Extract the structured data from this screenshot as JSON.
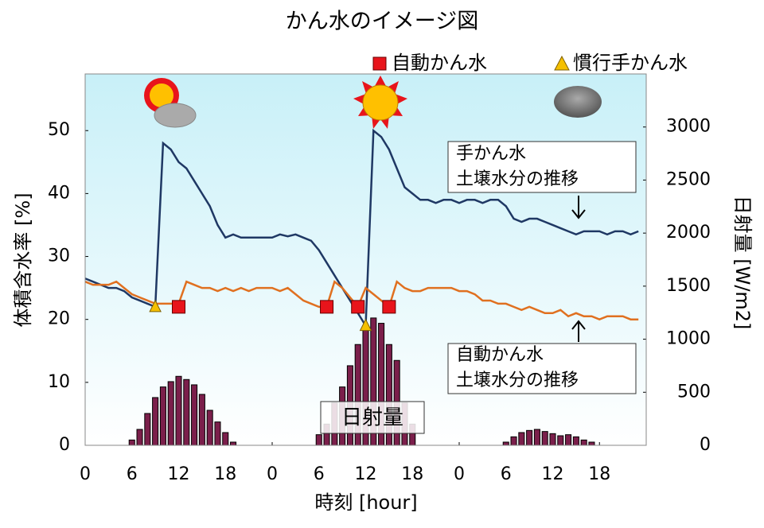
{
  "chart_data": {
    "type": "line",
    "title": "かん水のイメージ図",
    "x_label": "時刻 [hour]",
    "y_label": "体積含水率 [%]",
    "y2_label": "日射量 [W/m2]",
    "xlim": [
      0,
      72
    ],
    "ylim": [
      0,
      59
    ],
    "y2lim": [
      0,
      3500
    ],
    "xticks": [
      {
        "value": 0,
        "label": "0"
      },
      {
        "value": 6,
        "label": "6"
      },
      {
        "value": 12,
        "label": "12"
      },
      {
        "value": 18,
        "label": "18"
      },
      {
        "value": 24,
        "label": "0"
      },
      {
        "value": 30,
        "label": "6"
      },
      {
        "value": 36,
        "label": "12"
      },
      {
        "value": 42,
        "label": "18"
      },
      {
        "value": 48,
        "label": "0"
      },
      {
        "value": 54,
        "label": "6"
      },
      {
        "value": 60,
        "label": "12"
      },
      {
        "value": 66,
        "label": "18"
      }
    ],
    "yticks": [
      0,
      10,
      20,
      30,
      40,
      50
    ],
    "y2ticks": [
      0,
      500,
      1000,
      1500,
      2000,
      2500,
      3000
    ],
    "x": [
      0,
      1,
      2,
      3,
      4,
      5,
      6,
      7,
      8,
      9,
      10,
      11,
      12,
      13,
      14,
      15,
      16,
      17,
      18,
      19,
      20,
      21,
      22,
      23,
      24,
      25,
      26,
      27,
      28,
      29,
      30,
      31,
      32,
      33,
      34,
      35,
      36,
      37,
      38,
      39,
      40,
      41,
      42,
      43,
      44,
      45,
      46,
      47,
      48,
      49,
      50,
      51,
      52,
      53,
      54,
      55,
      56,
      57,
      58,
      59,
      60,
      61,
      62,
      63,
      64,
      65,
      66,
      67,
      68,
      69,
      70,
      71
    ],
    "series": [
      {
        "type": "line",
        "color": "#1f3864",
        "values": [
          26.5,
          26,
          25.5,
          25,
          25,
          24.5,
          23.5,
          23,
          22.5,
          22,
          48,
          47,
          45,
          44,
          42,
          40,
          38,
          35,
          33,
          33.5,
          33,
          33,
          33,
          33,
          33,
          33.5,
          33.2,
          33.5,
          33,
          32.5,
          31,
          29,
          27,
          25,
          23,
          21,
          19,
          50,
          49,
          47,
          44,
          41,
          40,
          39,
          39,
          38.5,
          39,
          39,
          38.5,
          39,
          39,
          38.5,
          39,
          39,
          38,
          36,
          35.5,
          36,
          36,
          35.5,
          35,
          34.5,
          34,
          33.5,
          34,
          34,
          34,
          33.5,
          34,
          34,
          33.5,
          34
        ]
      },
      {
        "type": "line",
        "color": "#e07020",
        "values": [
          26,
          25.5,
          25.5,
          25.5,
          26,
          25,
          24,
          23.5,
          23,
          22.5,
          22.5,
          22.5,
          22.5,
          26,
          25.5,
          25,
          25,
          24.5,
          25,
          24.5,
          25,
          24.5,
          25,
          25,
          25,
          24.5,
          25,
          24,
          23,
          22.5,
          22,
          22,
          26,
          25,
          23.5,
          22,
          25,
          24,
          23,
          22,
          26,
          25,
          24.5,
          24.5,
          25,
          25,
          25,
          25,
          24.5,
          24.5,
          24,
          23,
          23,
          22.5,
          22.5,
          22,
          21.5,
          22,
          21.5,
          21,
          21,
          21.5,
          20.5,
          21,
          20.5,
          20.5,
          20,
          20.5,
          20.5,
          20.5,
          20,
          20
        ]
      },
      {
        "type": "bar",
        "axis": "y2",
        "name": "日射量",
        "color": "#7b1f4b",
        "x": [
          6,
          7,
          8,
          9,
          10,
          11,
          12,
          13,
          14,
          15,
          16,
          17,
          18,
          19,
          30,
          31,
          32,
          33,
          34,
          35,
          36,
          37,
          38,
          39,
          40,
          41,
          42,
          54,
          55,
          56,
          57,
          58,
          59,
          60,
          61,
          62,
          63,
          64,
          65
        ],
        "values": [
          50,
          150,
          300,
          450,
          550,
          600,
          650,
          620,
          570,
          480,
          330,
          220,
          120,
          30,
          100,
          200,
          400,
          550,
          750,
          950,
          1100,
          1200,
          1150,
          950,
          800,
          400,
          200,
          30,
          80,
          120,
          140,
          150,
          130,
          110,
          90,
          100,
          80,
          50,
          30
        ]
      },
      {
        "type": "scatter",
        "name": "自動かん水",
        "color": "#e8141b",
        "marker": "square",
        "x": [
          12,
          31,
          35,
          39
        ],
        "values": [
          22,
          22,
          22,
          22
        ]
      },
      {
        "type": "scatter",
        "name": "慣行手かん水",
        "color": "#f5c000",
        "marker": "triangle",
        "x": [
          9,
          36
        ],
        "values": [
          22,
          19
        ]
      }
    ],
    "annotations": [
      {
        "lines": [
          "手かん水",
          "土壌水分の推移"
        ]
      },
      {
        "lines": [
          "自動かん水",
          "土壌水分の推移"
        ]
      }
    ]
  }
}
